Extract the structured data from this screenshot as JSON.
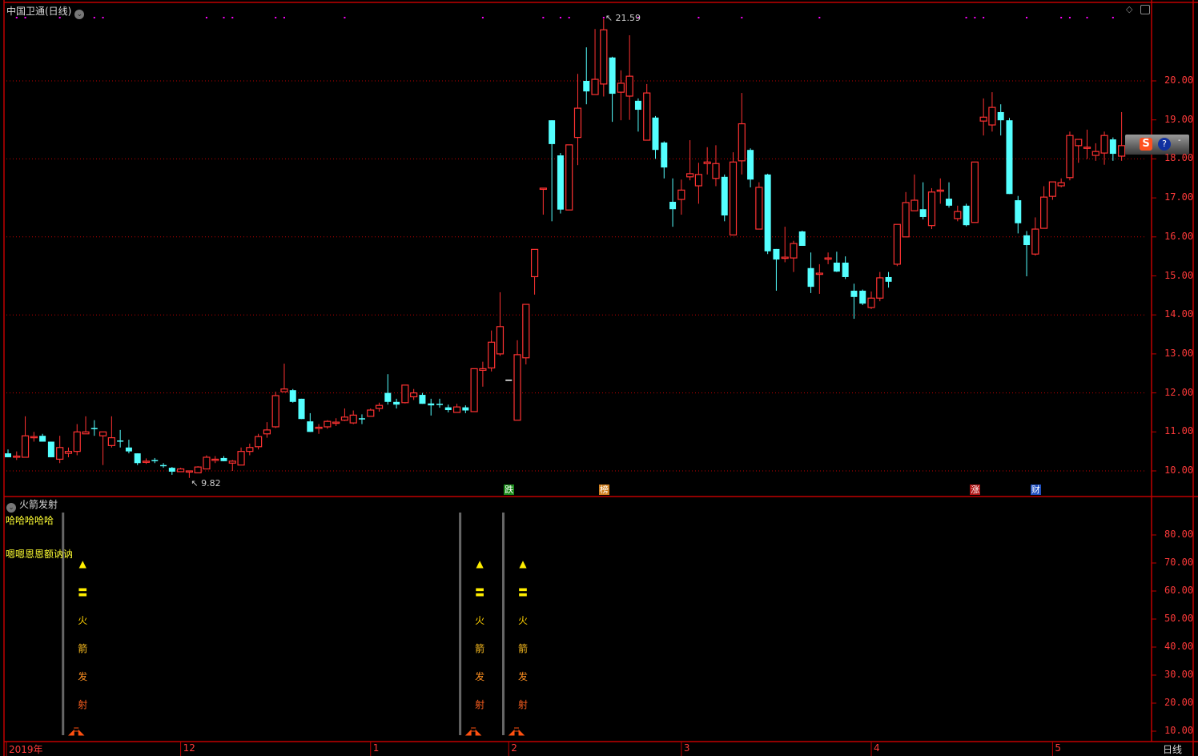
{
  "header": {
    "title": "中国卫通(日线)",
    "period": "日线"
  },
  "indicator": {
    "title": "火箭发射",
    "line1": "哈哈哈哈哈",
    "line2": "嗯嗯恩恩额讷讷",
    "signal_glyphs": [
      "▲",
      "〓",
      "火",
      "箭",
      "发",
      "射"
    ],
    "signal_candles": [
      8,
      54,
      59
    ]
  },
  "markers": [
    {
      "text": "跌",
      "candle": 58,
      "color": "#1a8a1a"
    },
    {
      "text": "榜",
      "candle": 69,
      "color": "#d08020"
    },
    {
      "text": "涨",
      "candle": 112,
      "color": "#b01818"
    },
    {
      "text": "财",
      "candle": 119,
      "color": "#2050c0"
    }
  ],
  "widget": {
    "icons": [
      "sogou-icon",
      "help-icon"
    ]
  },
  "colors": {
    "up": "#ff3232",
    "down": "#54ffff",
    "doji": "#ffffff",
    "grid": "#c00000",
    "axis": "#ff3a3a",
    "marker": "#ff00ff"
  },
  "chart_data": [
    {
      "type": "candlestick",
      "price_axis": {
        "ticks": [
          "20.00",
          "19.00",
          "18.00",
          "17.00",
          "16.00",
          "15.00",
          "14.00",
          "13.00",
          "12.00",
          "11.00",
          "10.00"
        ],
        "range": [
          9.7,
          21.8
        ],
        "grid": "dotted at even values"
      },
      "x_labels": [
        {
          "text": "2019年",
          "candle": 0
        },
        {
          "text": "12",
          "candle": 20
        },
        {
          "text": "1",
          "candle": 42
        },
        {
          "text": "2",
          "candle": 58
        },
        {
          "text": "3",
          "candle": 78
        },
        {
          "text": "4",
          "candle": 100
        },
        {
          "text": "5",
          "candle": 121
        }
      ],
      "high_label": "21.59",
      "low_label": "9.82",
      "top_markers": [
        1,
        2,
        6,
        10,
        11,
        23,
        25,
        26,
        31,
        32,
        39,
        55,
        62,
        64,
        65,
        69,
        73,
        80,
        85,
        94,
        111,
        112,
        113,
        118,
        122,
        123,
        125,
        128
      ],
      "ohlc": [
        [
          10.45,
          10.55,
          10.35,
          10.35
        ],
        [
          10.38,
          10.5,
          10.28,
          10.38
        ],
        [
          10.35,
          11.4,
          10.35,
          10.9
        ],
        [
          10.85,
          11.0,
          10.75,
          10.88
        ],
        [
          10.9,
          10.95,
          10.75,
          10.75
        ],
        [
          10.75,
          10.75,
          10.35,
          10.35
        ],
        [
          10.3,
          10.9,
          10.2,
          10.6
        ],
        [
          10.45,
          10.6,
          10.35,
          10.5
        ],
        [
          10.5,
          11.2,
          10.4,
          11.0
        ],
        [
          10.95,
          11.4,
          10.95,
          11.0
        ],
        [
          11.1,
          11.3,
          10.9,
          11.08
        ],
        [
          10.9,
          11.0,
          10.15,
          11.0
        ],
        [
          10.65,
          11.4,
          10.6,
          10.85
        ],
        [
          10.78,
          11.05,
          10.6,
          10.75
        ],
        [
          10.6,
          10.8,
          10.45,
          10.5
        ],
        [
          10.45,
          10.45,
          10.15,
          10.2
        ],
        [
          10.25,
          10.32,
          10.18,
          10.25
        ],
        [
          10.28,
          10.33,
          10.2,
          10.25
        ],
        [
          10.15,
          10.2,
          10.08,
          10.12
        ],
        [
          10.08,
          10.1,
          9.9,
          9.98
        ],
        [
          9.98,
          10.08,
          9.98,
          10.05
        ],
        [
          9.97,
          9.99,
          9.82,
          10.0
        ],
        [
          9.95,
          10.12,
          9.95,
          10.1
        ],
        [
          10.05,
          10.4,
          10.05,
          10.35
        ],
        [
          10.28,
          10.38,
          10.2,
          10.3
        ],
        [
          10.33,
          10.38,
          10.25,
          10.25
        ],
        [
          10.2,
          10.28,
          10.0,
          10.25
        ],
        [
          10.15,
          10.6,
          10.15,
          10.5
        ],
        [
          10.5,
          10.7,
          10.4,
          10.6
        ],
        [
          10.62,
          10.95,
          10.55,
          10.88
        ],
        [
          10.95,
          11.25,
          10.85,
          11.05
        ],
        [
          11.13,
          12.03,
          11.1,
          11.93
        ],
        [
          12.03,
          12.75,
          12.03,
          12.1
        ],
        [
          12.07,
          12.1,
          11.75,
          11.77
        ],
        [
          11.85,
          11.85,
          11.33,
          11.33
        ],
        [
          11.27,
          11.48,
          11.0,
          11.0
        ],
        [
          11.1,
          11.2,
          10.95,
          11.12
        ],
        [
          11.13,
          11.3,
          11.08,
          11.27
        ],
        [
          11.25,
          11.35,
          11.15,
          11.25
        ],
        [
          11.3,
          11.6,
          11.28,
          11.38
        ],
        [
          11.23,
          11.55,
          11.2,
          11.43
        ],
        [
          11.35,
          11.45,
          11.2,
          11.33
        ],
        [
          11.4,
          11.6,
          11.4,
          11.56
        ],
        [
          11.6,
          11.75,
          11.52,
          11.68
        ],
        [
          12.0,
          12.48,
          11.7,
          11.77
        ],
        [
          11.77,
          11.85,
          11.6,
          11.7
        ],
        [
          11.75,
          12.2,
          11.73,
          12.2
        ],
        [
          11.9,
          12.1,
          11.82,
          12.0
        ],
        [
          11.95,
          12.0,
          11.72,
          11.72
        ],
        [
          11.73,
          11.85,
          11.42,
          11.68
        ],
        [
          11.72,
          11.85,
          11.62,
          11.7
        ],
        [
          11.63,
          11.7,
          11.5,
          11.56
        ],
        [
          11.5,
          11.72,
          11.5,
          11.64
        ],
        [
          11.63,
          11.68,
          11.48,
          11.55
        ],
        [
          11.52,
          12.62,
          11.52,
          12.62
        ],
        [
          12.58,
          12.8,
          12.16,
          12.62
        ],
        [
          12.64,
          13.6,
          12.55,
          13.3
        ],
        [
          13.0,
          14.58,
          12.95,
          13.7
        ],
        [
          12.34,
          12.34,
          12.34,
          12.34
        ],
        [
          11.3,
          13.35,
          11.3,
          12.98
        ],
        [
          12.9,
          14.27,
          12.73,
          14.27
        ],
        [
          14.98,
          15.68,
          14.52,
          15.68
        ],
        [
          17.22,
          17.25,
          16.57,
          17.25
        ],
        [
          18.99,
          18.99,
          16.4,
          18.38
        ],
        [
          18.09,
          18.15,
          16.6,
          16.7
        ],
        [
          16.69,
          18.36,
          16.69,
          18.36
        ],
        [
          18.55,
          20.18,
          17.84,
          19.3
        ],
        [
          20.0,
          20.86,
          19.4,
          19.73
        ],
        [
          19.65,
          21.33,
          19.65,
          20.04
        ],
        [
          19.92,
          21.59,
          19.6,
          21.31
        ],
        [
          20.6,
          20.62,
          18.95,
          19.67
        ],
        [
          19.71,
          20.27,
          18.99,
          19.94
        ],
        [
          19.61,
          21.17,
          19.0,
          20.12
        ],
        [
          19.49,
          19.55,
          18.7,
          19.26
        ],
        [
          18.48,
          19.92,
          18.48,
          19.69
        ],
        [
          19.06,
          19.1,
          18.0,
          18.23
        ],
        [
          18.42,
          18.45,
          17.5,
          17.78
        ],
        [
          16.9,
          17.5,
          16.26,
          16.71
        ],
        [
          16.96,
          17.47,
          16.57,
          17.2
        ],
        [
          17.54,
          18.48,
          17.45,
          17.62
        ],
        [
          17.31,
          17.9,
          16.85,
          17.6
        ],
        [
          17.88,
          18.3,
          17.6,
          17.92
        ],
        [
          17.5,
          18.35,
          17.3,
          17.88
        ],
        [
          17.54,
          17.6,
          16.4,
          16.55
        ],
        [
          16.05,
          18.17,
          16.05,
          17.92
        ],
        [
          17.95,
          19.69,
          17.6,
          18.9
        ],
        [
          18.23,
          18.27,
          17.27,
          17.47
        ],
        [
          16.2,
          17.4,
          16.2,
          17.27
        ],
        [
          17.6,
          17.62,
          15.56,
          15.63
        ],
        [
          15.69,
          15.69,
          14.62,
          15.42
        ],
        [
          15.47,
          16.26,
          15.35,
          15.48
        ],
        [
          15.46,
          15.9,
          15.1,
          15.83
        ],
        [
          16.14,
          16.16,
          15.77,
          15.77
        ],
        [
          15.2,
          15.6,
          14.56,
          14.72
        ],
        [
          15.07,
          15.3,
          14.54,
          15.07
        ],
        [
          15.46,
          15.6,
          15.3,
          15.46
        ],
        [
          15.34,
          15.62,
          15.1,
          15.11
        ],
        [
          15.34,
          15.5,
          14.92,
          14.97
        ],
        [
          14.62,
          14.8,
          13.9,
          14.46
        ],
        [
          14.62,
          14.65,
          14.25,
          14.29
        ],
        [
          14.19,
          14.6,
          14.15,
          14.43
        ],
        [
          14.43,
          15.1,
          14.35,
          14.95
        ],
        [
          14.97,
          15.1,
          14.7,
          14.85
        ],
        [
          15.3,
          16.32,
          15.25,
          16.32
        ],
        [
          16.0,
          17.15,
          16.0,
          16.88
        ],
        [
          16.67,
          17.6,
          16.67,
          16.94
        ],
        [
          16.71,
          17.4,
          16.45,
          16.51
        ],
        [
          16.29,
          17.25,
          16.2,
          17.15
        ],
        [
          17.2,
          17.5,
          16.85,
          17.2
        ],
        [
          16.98,
          17.4,
          16.75,
          16.8
        ],
        [
          16.47,
          16.8,
          16.4,
          16.65
        ],
        [
          16.8,
          16.85,
          16.27,
          16.3
        ],
        [
          16.37,
          17.92,
          16.37,
          17.92
        ],
        [
          18.97,
          19.55,
          18.6,
          19.07
        ],
        [
          18.87,
          19.71,
          18.7,
          19.32
        ],
        [
          19.2,
          19.4,
          18.6,
          18.99
        ],
        [
          18.99,
          19.05,
          17.1,
          17.1
        ],
        [
          16.94,
          17.05,
          16.09,
          16.35
        ],
        [
          16.04,
          16.15,
          14.99,
          15.79
        ],
        [
          15.56,
          16.5,
          15.52,
          16.2
        ],
        [
          16.22,
          17.3,
          16.22,
          17.02
        ],
        [
          17.04,
          17.41,
          16.95,
          17.41
        ],
        [
          17.31,
          17.5,
          17.27,
          17.39
        ],
        [
          17.52,
          18.7,
          17.45,
          18.6
        ],
        [
          18.34,
          18.5,
          17.9,
          18.5
        ],
        [
          18.3,
          18.75,
          18.0,
          18.3
        ],
        [
          18.09,
          18.4,
          17.95,
          18.19
        ],
        [
          18.15,
          18.7,
          17.85,
          18.6
        ],
        [
          18.5,
          18.55,
          17.95,
          18.13
        ],
        [
          18.07,
          19.2,
          17.95,
          18.34
        ]
      ]
    },
    {
      "type": "indicator",
      "y_axis": {
        "ticks": [
          "80.00",
          "70.00",
          "60.00",
          "50.00",
          "40.00",
          "30.00",
          "20.00",
          "10.00"
        ],
        "range": [
          5,
          92
        ]
      }
    }
  ]
}
